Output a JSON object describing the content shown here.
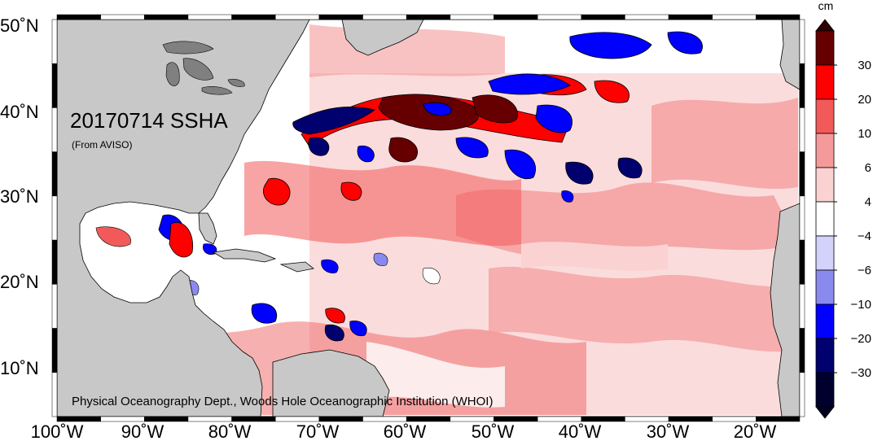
{
  "map": {
    "title": "20170714 SSHA",
    "subtitle": "(From AVISO)",
    "credit": "Physical Oceanography Dept., Woods Hole Oceanographic Institution (WHOI)",
    "lat_labels": [
      "50˚N",
      "40˚N",
      "30˚N",
      "20˚N",
      "10˚N"
    ],
    "lon_labels": [
      "100˚W",
      "90˚W",
      "80˚W",
      "70˚W",
      "60˚W",
      "50˚W",
      "40˚W",
      "30˚W",
      "20˚W"
    ],
    "land_color": "#c8c8c8",
    "ocean_color": "#ffffff"
  },
  "colorbar": {
    "unit": "cm",
    "tick_labels": [
      "30",
      "20",
      "10",
      "6",
      "4",
      "−4",
      "−6",
      "−10",
      "−20",
      "−30"
    ],
    "colors": [
      "#660000",
      "#ff0000",
      "#f25a5a",
      "#f59a9a",
      "#fad2d2",
      "#ffffff",
      "#d2d2fa",
      "#8a8aee",
      "#0000ff",
      "#00006e",
      "#00002e"
    ],
    "top_arrow_color": "#2e0000",
    "bottom_arrow_color": "#00001e"
  }
}
